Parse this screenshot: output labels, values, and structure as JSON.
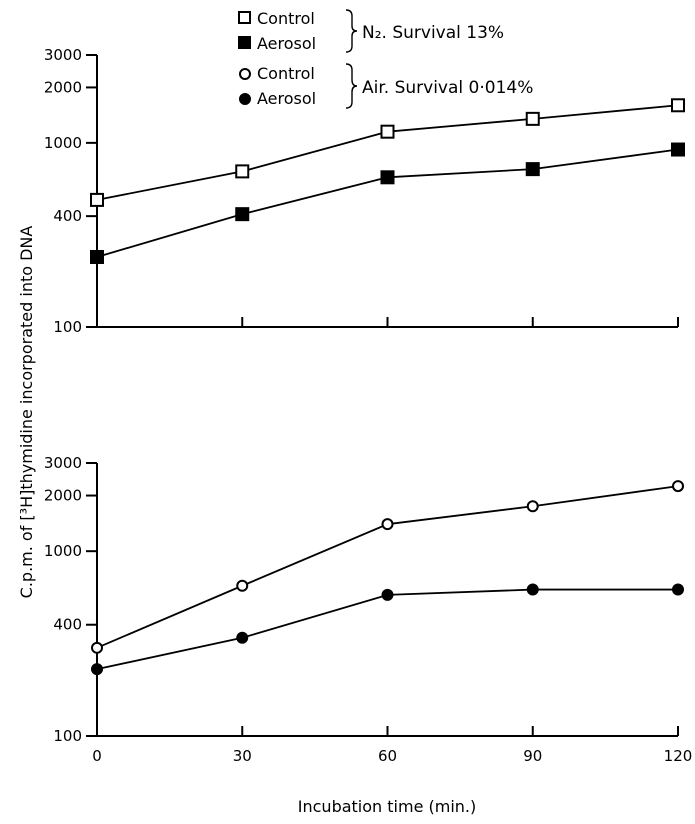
{
  "chart_data": [
    {
      "type": "line",
      "x": [
        0,
        30,
        60,
        90,
        120
      ],
      "series": [
        {
          "name": "Control",
          "values": [
            490,
            700,
            1150,
            1350,
            1600
          ],
          "marker": "open-square"
        },
        {
          "name": "Aerosol",
          "values": [
            240,
            410,
            650,
            720,
            920
          ],
          "marker": "filled-square"
        }
      ],
      "y_scale": "log",
      "ylim": [
        100,
        3000
      ],
      "yticks": [
        "3000",
        "2000",
        "1000",
        "400",
        "100"
      ],
      "xticks": [
        "",
        "",
        "",
        "",
        ""
      ],
      "legend_note": "N₂. Survival 13%"
    },
    {
      "type": "line",
      "x": [
        0,
        30,
        60,
        90,
        120
      ],
      "series": [
        {
          "name": "Control",
          "values": [
            300,
            650,
            1400,
            1750,
            2250
          ],
          "marker": "open-circle"
        },
        {
          "name": "Aerosol",
          "values": [
            230,
            340,
            580,
            620,
            620
          ],
          "marker": "filled-circle"
        }
      ],
      "y_scale": "log",
      "ylim": [
        100,
        3000
      ],
      "yticks": [
        "3000",
        "2000",
        "1000",
        "400",
        "100"
      ],
      "xticks": [
        "0",
        "30",
        "60",
        "90",
        "120"
      ],
      "legend_note": "Air. Survival 0·014%"
    }
  ],
  "ylabel": "C.p.m. of [³H]thymidine incorporated into DNA",
  "xlabel": "Incubation time (min.)",
  "legend": {
    "position": "top",
    "groups": [
      {
        "note": "N₂. Survival 13%",
        "entries": [
          {
            "label": "Control",
            "marker": "open-square"
          },
          {
            "label": "Aerosol",
            "marker": "filled-square"
          }
        ]
      },
      {
        "note": "Air. Survival 0·014%",
        "entries": [
          {
            "label": "Control",
            "marker": "open-circle"
          },
          {
            "label": "Aerosol",
            "marker": "filled-circle"
          }
        ]
      }
    ]
  }
}
